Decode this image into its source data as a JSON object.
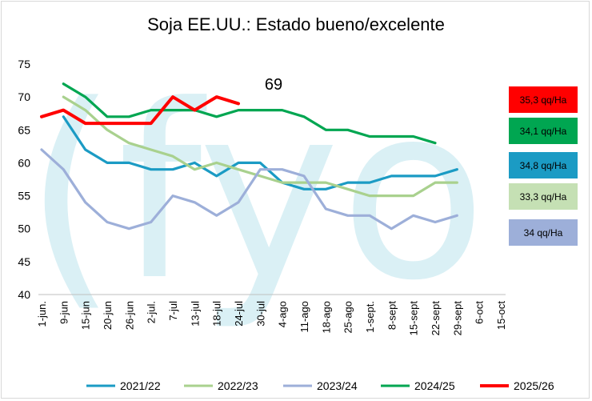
{
  "chart_data": {
    "type": "line",
    "title": "Soja EE.UU.: Estado bueno/excelente",
    "xlabel": "",
    "ylabel": "",
    "ylim": [
      40,
      75
    ],
    "yticks": [
      40,
      45,
      50,
      55,
      60,
      65,
      70,
      75
    ],
    "grid": false,
    "legend_position": "bottom",
    "categories": [
      "1-jun.",
      "9-jun",
      "15-jun",
      "20-jun",
      "26-jun",
      "2-jul.",
      "7-jul",
      "13-jul",
      "18-jul",
      "24-jul",
      "30-jul",
      "4-ago",
      "11-ago",
      "18-ago",
      "25-ago",
      "1-sept.",
      "8-sept",
      "15-sept",
      "22-sept",
      "29-sept",
      "6-oct",
      "15-oct"
    ],
    "series": [
      {
        "name": "2021/22",
        "color": "#1b9bc4",
        "values": [
          67,
          62,
          60,
          60,
          59,
          59,
          60,
          58,
          60,
          60,
          57,
          56,
          56,
          57,
          57,
          58,
          58,
          58,
          59,
          null,
          null,
          null
        ],
        "start": 1,
        "label": "34,8 qq/Ha",
        "label_bg": "#1b9bc4",
        "label_color": "#000000"
      },
      {
        "name": "2022/23",
        "color": "#a9d18e",
        "values": [
          70,
          68,
          65,
          63,
          62,
          61,
          59,
          60,
          59,
          58,
          57,
          57,
          57,
          56,
          55,
          55,
          55,
          57,
          57,
          null,
          null,
          null
        ],
        "start": 1,
        "label": "33,3 qq/Ha",
        "label_bg": "#c5e0b4",
        "label_color": "#000000"
      },
      {
        "name": "2023/24",
        "color": "#9dafd9",
        "values": [
          62,
          59,
          54,
          51,
          50,
          51,
          55,
          54,
          52,
          54,
          59,
          59,
          58,
          53,
          52,
          52,
          50,
          52,
          51,
          52,
          null,
          null
        ],
        "start": 0,
        "label": "34 qq/Ha",
        "label_bg": "#9dafd9",
        "label_color": "#000000"
      },
      {
        "name": "2024/25",
        "color": "#00a651",
        "values": [
          72,
          70,
          67,
          67,
          68,
          68,
          68,
          67,
          68,
          68,
          68,
          67,
          65,
          65,
          64,
          64,
          64,
          63,
          null,
          null,
          null,
          null
        ],
        "start": 1,
        "label": "34,1 qq/Ha",
        "label_bg": "#00a651",
        "label_color": "#000000"
      },
      {
        "name": "2025/26",
        "color": "#ff0000",
        "values": [
          67,
          68,
          66,
          66,
          66,
          66,
          70,
          68,
          70,
          69,
          null,
          null,
          null,
          null,
          null,
          null,
          null,
          null,
          null,
          null,
          null,
          null
        ],
        "start": 0,
        "label": "35,3 qq/Ha",
        "label_bg": "#ff0000",
        "label_color": "#000000"
      }
    ],
    "annotation": {
      "text": "69"
    },
    "watermark": {
      "text": "(fyo",
      "color": "#daf0f5"
    }
  }
}
